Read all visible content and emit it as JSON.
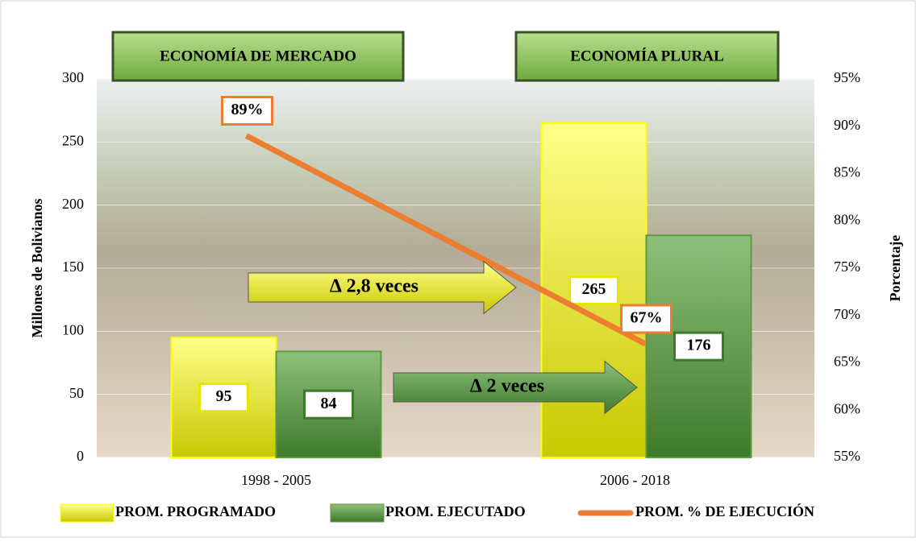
{
  "chart_data": {
    "type": "bar",
    "categories": [
      "1998 - 2005",
      "2006 - 2018"
    ],
    "series": [
      {
        "name": "PROM. PROGRAMADO",
        "color": "#ffff00",
        "values": [
          95,
          265
        ]
      },
      {
        "name": "PROM. EJECUTADO",
        "color": "#5b9b3c",
        "values": [
          84,
          176
        ]
      },
      {
        "name": "PROM. % DE EJECUCIÓN",
        "type": "line",
        "axis": "y2",
        "color": "#ed7d31",
        "values": [
          89,
          67
        ],
        "value_labels": [
          "89%",
          "67%"
        ]
      }
    ],
    "ylabel": "Millones de Bolivianos",
    "y2label": "Porcentaje",
    "ylim": [
      0,
      300
    ],
    "yticks": [
      0,
      50,
      100,
      150,
      200,
      250,
      300
    ],
    "y2lim": [
      55,
      95
    ],
    "y2ticks": [
      {
        "value": 55,
        "label": "55%"
      },
      {
        "value": 60,
        "label": "60%"
      },
      {
        "value": 65,
        "label": "65%"
      },
      {
        "value": 70,
        "label": "70%"
      },
      {
        "value": 75,
        "label": "75%"
      },
      {
        "value": 80,
        "label": "80%"
      },
      {
        "value": 85,
        "label": "85%"
      },
      {
        "value": 90,
        "label": "90%"
      },
      {
        "value": 95,
        "label": "95%"
      }
    ],
    "grid": true,
    "legend": "bottom",
    "annotations": [
      "ECONOMÍA DE MERCADO",
      "ECONOMÍA PLURAL",
      "∆ 2,8  veces",
      "∆ 2 veces"
    ]
  }
}
